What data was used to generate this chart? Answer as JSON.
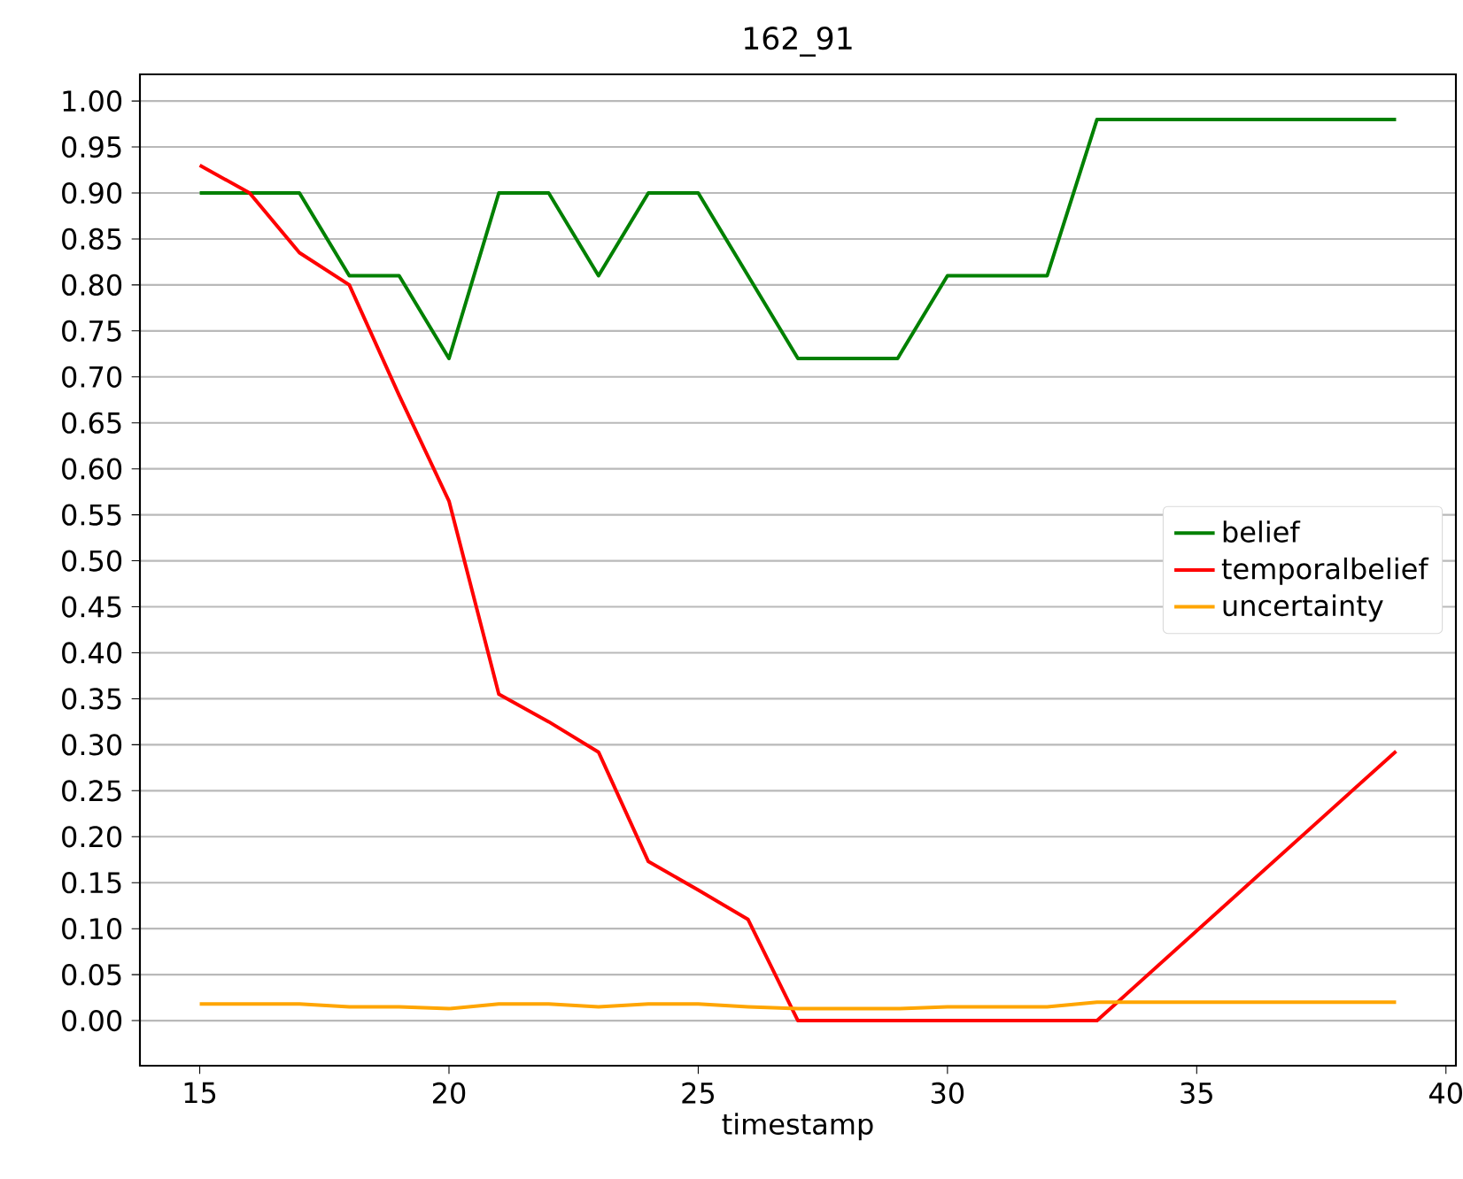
{
  "chart_data": {
    "type": "line",
    "title": "162_91",
    "xlabel": "timestamp",
    "x": [
      15,
      16,
      17,
      18,
      19,
      20,
      21,
      22,
      23,
      24,
      25,
      26,
      27,
      28,
      29,
      30,
      31,
      32,
      33,
      34,
      35,
      36,
      37,
      38,
      39
    ],
    "series": [
      {
        "name": "belief",
        "color": "#008000",
        "values": [
          0.9,
          0.9,
          0.9,
          0.81,
          0.81,
          0.72,
          0.9,
          0.9,
          0.81,
          0.9,
          0.9,
          0.81,
          0.72,
          0.72,
          0.72,
          0.81,
          0.81,
          0.81,
          0.98,
          0.98,
          0.98,
          0.98,
          0.98,
          0.98,
          0.98
        ]
      },
      {
        "name": "temporalbelief",
        "color": "#ff0000",
        "x": [
          15,
          16,
          17,
          18,
          19,
          20,
          21,
          22,
          23,
          24,
          25,
          26,
          27,
          28,
          29,
          30,
          31,
          32,
          33,
          39
        ],
        "values": [
          0.93,
          0.9,
          0.835,
          0.8,
          0.68,
          0.565,
          0.355,
          0.325,
          0.292,
          0.173,
          0.142,
          0.11,
          0,
          0,
          0,
          0,
          0,
          0,
          0,
          0.293
        ]
      },
      {
        "name": "uncertainty",
        "color": "#ffa500",
        "values": [
          0.018,
          0.018,
          0.018,
          0.015,
          0.015,
          0.013,
          0.018,
          0.018,
          0.015,
          0.018,
          0.018,
          0.015,
          0.013,
          0.013,
          0.013,
          0.015,
          0.015,
          0.015,
          0.02,
          0.02,
          0.02,
          0.02,
          0.02,
          0.02,
          0.02
        ]
      }
    ],
    "xlim": [
      13.8,
      40.2
    ],
    "ylim": [
      -0.049,
      1.029
    ],
    "xticks": [
      15,
      20,
      25,
      30,
      35,
      40
    ],
    "yticks": [
      {
        "value": 0,
        "label": "0.00"
      },
      {
        "value": 0.05,
        "label": "0.05"
      },
      {
        "value": 0.1,
        "label": "0.10"
      },
      {
        "value": 0.15,
        "label": "0.15"
      },
      {
        "value": 0.2,
        "label": "0.20"
      },
      {
        "value": 0.25,
        "label": "0.25"
      },
      {
        "value": 0.3,
        "label": "0.30"
      },
      {
        "value": 0.35,
        "label": "0.35"
      },
      {
        "value": 0.4,
        "label": "0.40"
      },
      {
        "value": 0.45,
        "label": "0.45"
      },
      {
        "value": 0.5,
        "label": "0.50"
      },
      {
        "value": 0.55,
        "label": "0.55"
      },
      {
        "value": 0.6,
        "label": "0.60"
      },
      {
        "value": 0.65,
        "label": "0.65"
      },
      {
        "value": 0.7,
        "label": "0.70"
      },
      {
        "value": 0.75,
        "label": "0.75"
      },
      {
        "value": 0.8,
        "label": "0.80"
      },
      {
        "value": 0.85,
        "label": "0.85"
      },
      {
        "value": 0.9,
        "label": "0.90"
      },
      {
        "value": 0.95,
        "label": "0.95"
      },
      {
        "value": 1.0,
        "label": "1.00"
      }
    ],
    "grid": "y",
    "legend": "right"
  }
}
